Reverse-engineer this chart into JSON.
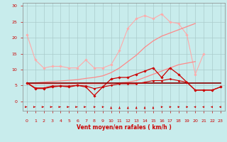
{
  "x": [
    0,
    1,
    2,
    3,
    4,
    5,
    6,
    7,
    8,
    9,
    10,
    11,
    12,
    13,
    14,
    15,
    16,
    17,
    18,
    19,
    20,
    21,
    22,
    23
  ],
  "series": [
    {
      "name": "light_pink_upper",
      "color": "#ffaaaa",
      "lw": 0.8,
      "marker": "D",
      "markersize": 1.8,
      "values": [
        21,
        13,
        10.5,
        11,
        11,
        10.5,
        10.5,
        13,
        10.5,
        10.5,
        11.5,
        16,
        23,
        26,
        27,
        26,
        27.5,
        25,
        24.5,
        21,
        8.5,
        15,
        null,
        null
      ]
    },
    {
      "name": "pink_trend_upper",
      "color": "#ff8888",
      "lw": 0.9,
      "marker": null,
      "markersize": 0,
      "values": [
        5.5,
        5.8,
        6.0,
        6.2,
        6.4,
        6.6,
        6.8,
        7.2,
        7.5,
        8.0,
        9.0,
        10.5,
        12.5,
        14.5,
        17.0,
        19.0,
        20.5,
        21.5,
        22.5,
        23.5,
        24.5,
        null,
        null,
        null
      ]
    },
    {
      "name": "pink_trend_lower",
      "color": "#ff8888",
      "lw": 0.9,
      "marker": null,
      "markersize": 0,
      "values": [
        5.5,
        5.5,
        5.5,
        5.5,
        5.5,
        5.5,
        5.5,
        5.5,
        5.5,
        5.5,
        5.5,
        5.8,
        6.0,
        6.5,
        7.5,
        8.5,
        9.5,
        10.5,
        11.5,
        12.0,
        12.5,
        null,
        null,
        null
      ]
    },
    {
      "name": "dark_red_markers",
      "color": "#cc0000",
      "lw": 0.9,
      "marker": "D",
      "markersize": 1.8,
      "values": [
        5.8,
        4.0,
        4.0,
        4.5,
        4.8,
        4.5,
        5.0,
        4.5,
        1.8,
        4.5,
        7.0,
        7.5,
        7.5,
        8.5,
        9.5,
        10.5,
        7.5,
        10.5,
        8.5,
        6.0,
        3.5,
        3.5,
        3.5,
        4.5
      ]
    },
    {
      "name": "dark_red_flat",
      "color": "#880000",
      "lw": 1.2,
      "marker": null,
      "markersize": 0,
      "values": [
        5.8,
        5.8,
        5.8,
        5.8,
        5.8,
        5.8,
        5.8,
        5.8,
        5.8,
        5.8,
        5.8,
        5.8,
        5.8,
        5.8,
        5.8,
        5.8,
        5.8,
        5.8,
        5.8,
        5.8,
        5.8,
        5.8,
        5.8,
        5.8
      ]
    },
    {
      "name": "dark_red_low",
      "color": "#cc0000",
      "lw": 0.8,
      "marker": "D",
      "markersize": 1.5,
      "values": [
        5.8,
        4.2,
        4.2,
        4.8,
        4.8,
        4.8,
        5.0,
        4.8,
        4.0,
        4.5,
        5.0,
        5.5,
        5.5,
        5.5,
        6.0,
        6.5,
        6.5,
        7.0,
        6.5,
        6.0,
        3.5,
        3.5,
        3.5,
        4.5
      ]
    }
  ],
  "arrow_directions": [
    0,
    0,
    0,
    0,
    0,
    0,
    0,
    0,
    45,
    45,
    90,
    90,
    90,
    90,
    90,
    90,
    45,
    45,
    45,
    45,
    135,
    135,
    135,
    135
  ],
  "xlim": [
    -0.5,
    23.5
  ],
  "ylim": [
    -3.0,
    31
  ],
  "yticks": [
    0,
    5,
    10,
    15,
    20,
    25,
    30
  ],
  "xticks": [
    0,
    1,
    2,
    3,
    4,
    5,
    6,
    7,
    8,
    9,
    10,
    11,
    12,
    13,
    14,
    15,
    16,
    17,
    18,
    19,
    20,
    21,
    22,
    23
  ],
  "xlabel": "Vent moyen/en rafales ( km/h )",
  "bg_color": "#c8ecec",
  "grid_color": "#aacccc",
  "tick_color": "#cc0000",
  "label_color": "#cc0000"
}
